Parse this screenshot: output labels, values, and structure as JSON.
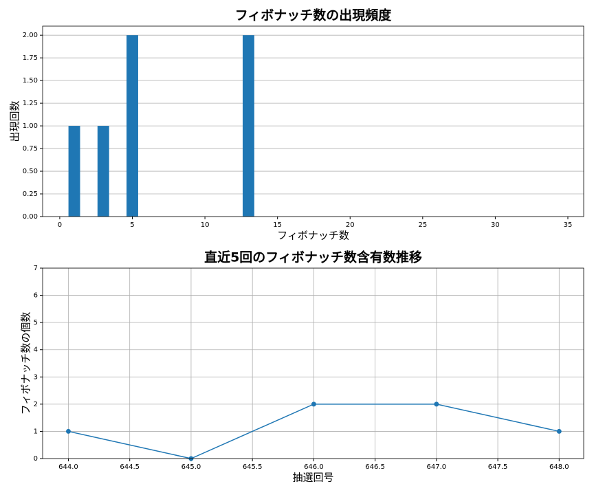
{
  "chart_data": [
    {
      "type": "bar",
      "title": "フィボナッチ数の出現頻度",
      "xlabel": "フィボナッチ数",
      "ylabel": "出現回数",
      "x": [
        1,
        3,
        5,
        13
      ],
      "values": [
        1,
        1,
        2,
        2
      ],
      "color": "#1f77b4",
      "xlim": [
        -1.18,
        36.09
      ],
      "xticks": [
        0,
        5,
        10,
        15,
        20,
        25,
        30,
        35
      ],
      "ylim": [
        0,
        2.1
      ],
      "yticks": [
        {
          "value": 0,
          "label": "0.00"
        },
        {
          "value": 0.25,
          "label": "0.25"
        },
        {
          "value": 0.5,
          "label": "0.50"
        },
        {
          "value": 0.75,
          "label": "0.75"
        },
        {
          "value": 1,
          "label": "1.00"
        },
        {
          "value": 1.25,
          "label": "1.25"
        },
        {
          "value": 1.5,
          "label": "1.50"
        },
        {
          "value": 1.75,
          "label": "1.75"
        },
        {
          "value": 2,
          "label": "2.00"
        }
      ],
      "grid": "y"
    },
    {
      "type": "line",
      "title": "直近5回のフィボナッチ数含有数推移",
      "xlabel": "抽選回号",
      "ylabel": "フィボナッチ数の個数",
      "x": [
        644,
        645,
        646,
        647,
        648
      ],
      "values": [
        1,
        0,
        2,
        2,
        1
      ],
      "color": "#1f77b4",
      "xlim": [
        643.79,
        648.2
      ],
      "xticks": [
        {
          "value": 644,
          "label": "644.0"
        },
        {
          "value": 644.5,
          "label": "644.5"
        },
        {
          "value": 645,
          "label": "645.0"
        },
        {
          "value": 645.5,
          "label": "645.5"
        },
        {
          "value": 646,
          "label": "646.0"
        },
        {
          "value": 646.5,
          "label": "646.5"
        },
        {
          "value": 647,
          "label": "647.0"
        },
        {
          "value": 647.5,
          "label": "647.5"
        },
        {
          "value": 648,
          "label": "648.0"
        }
      ],
      "ylim": [
        0,
        7
      ],
      "yticks": [
        0,
        1,
        2,
        3,
        4,
        5,
        6,
        7
      ],
      "grid": "both"
    }
  ]
}
